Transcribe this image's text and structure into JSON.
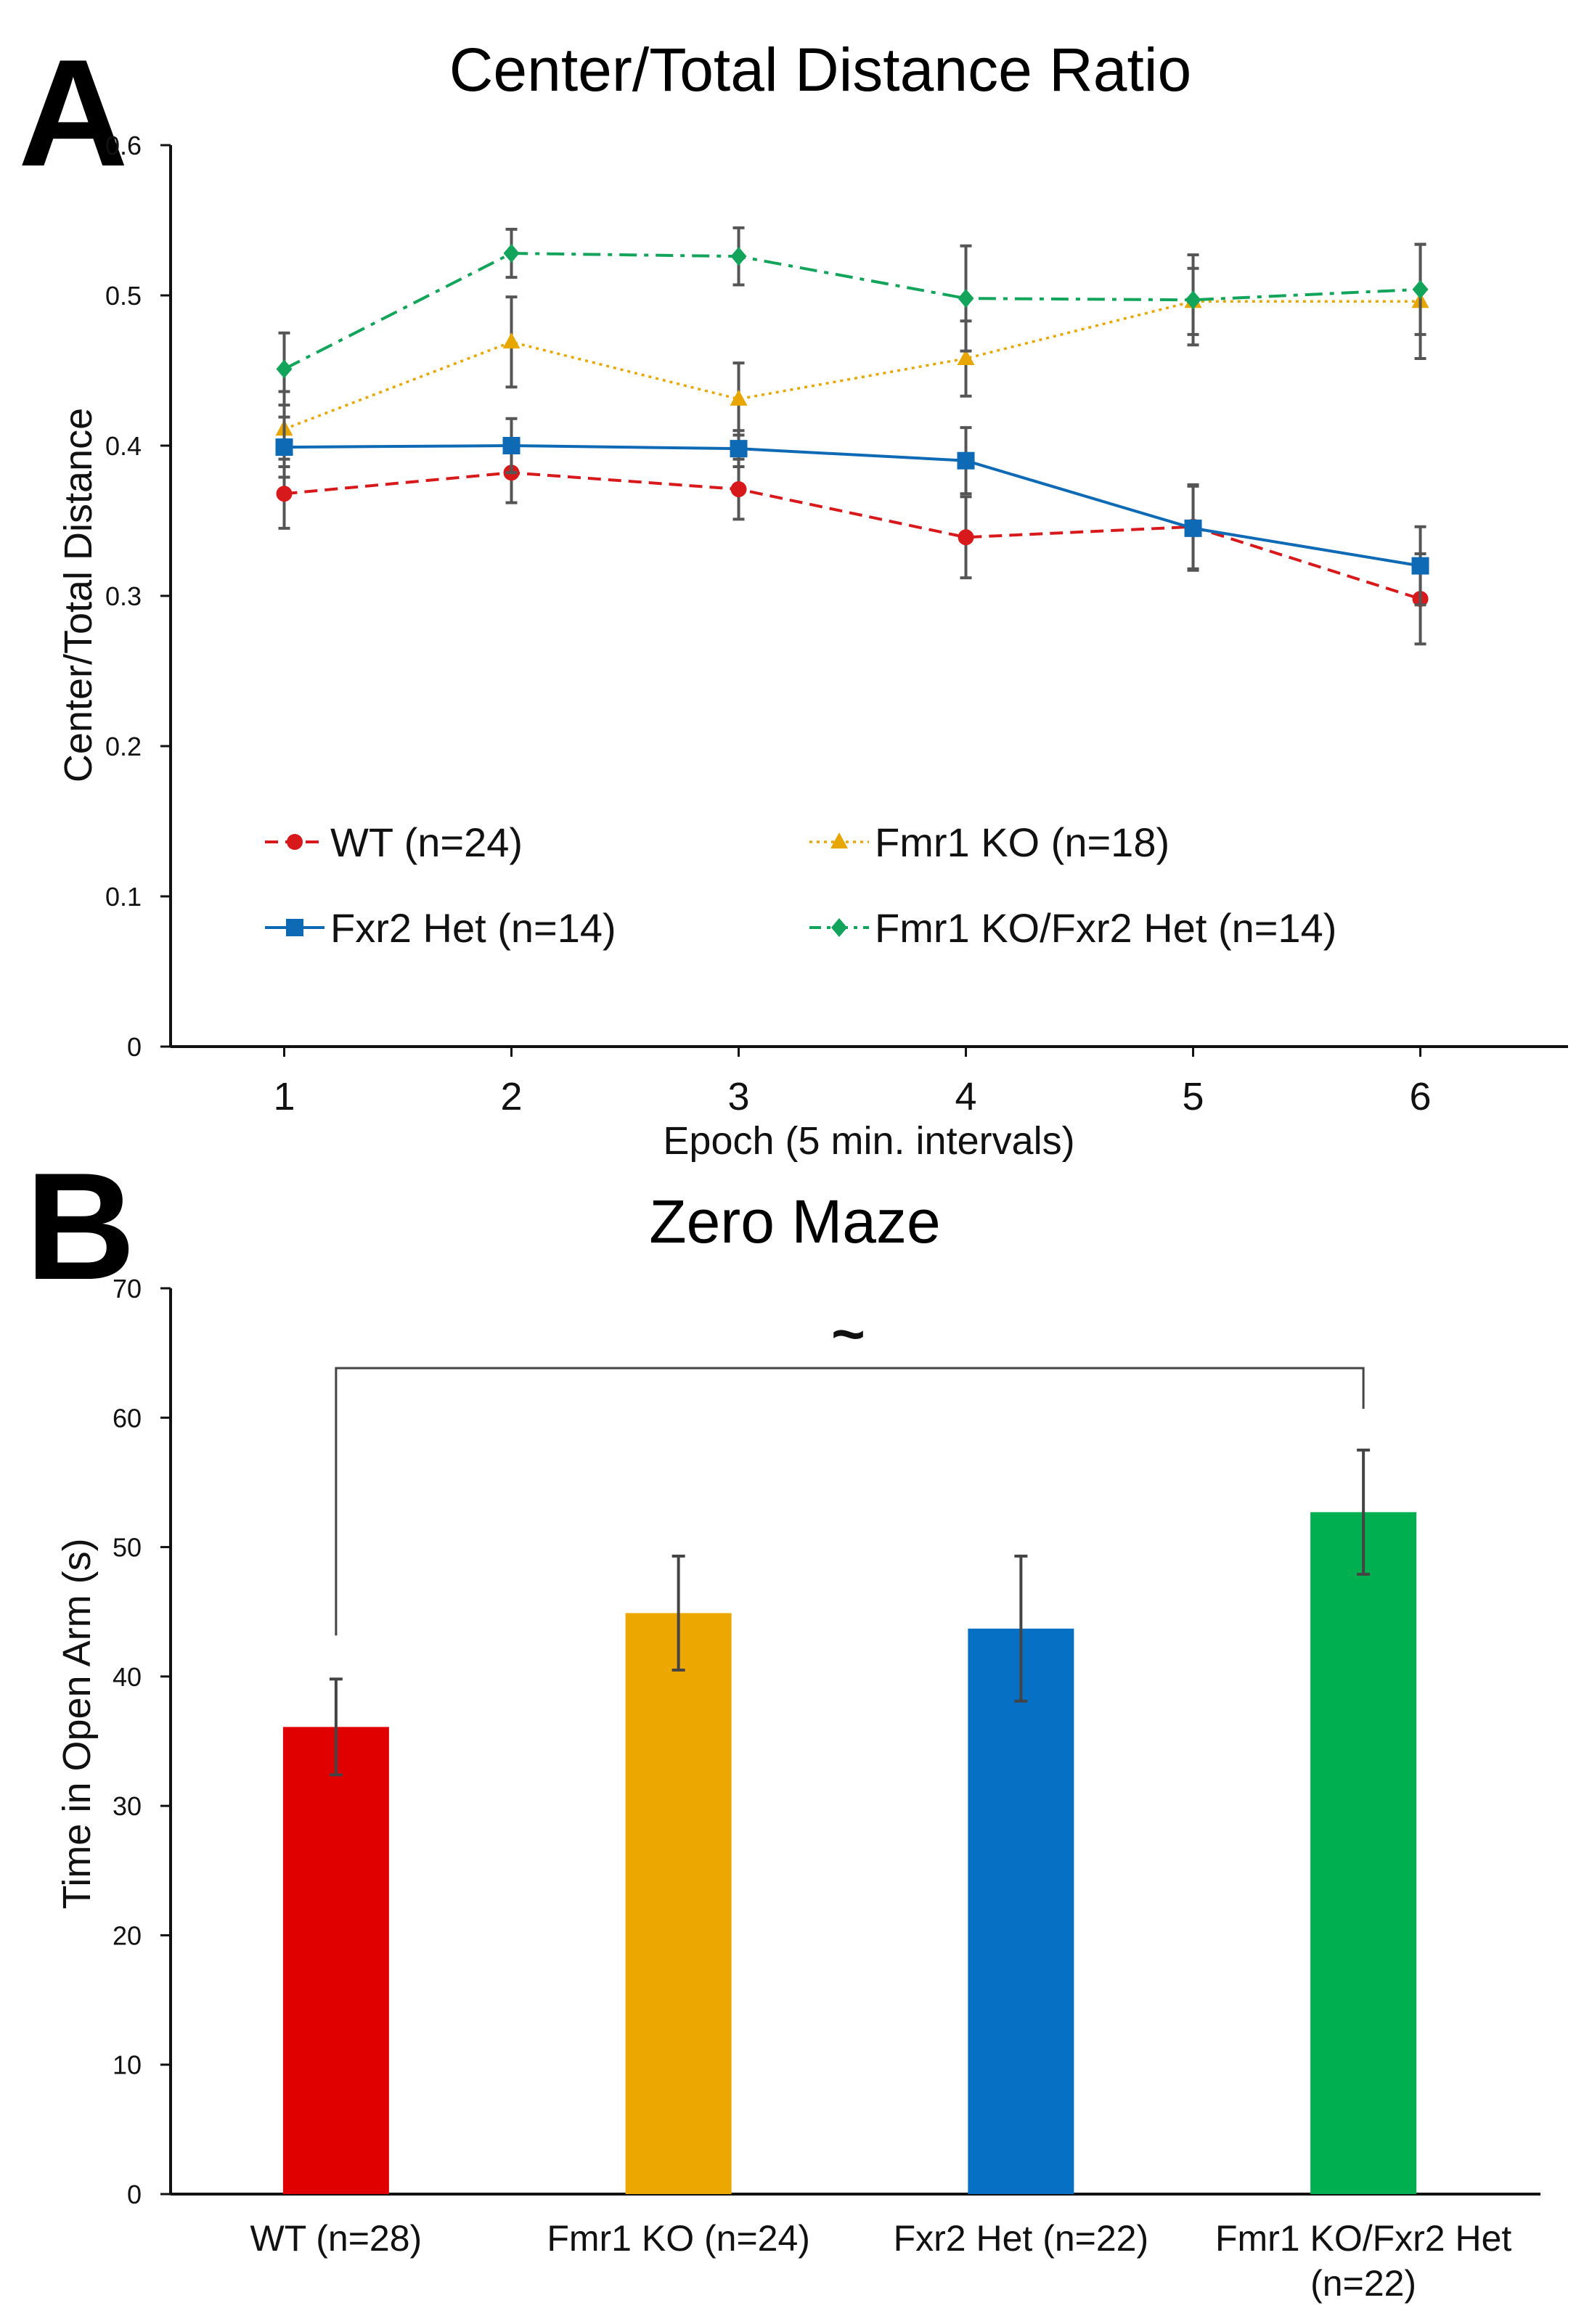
{
  "figure": {
    "panel_a_letter": "A",
    "panel_b_letter": "B"
  },
  "chart_data": [
    {
      "type": "line",
      "title": "Center/Total Distance Ratio",
      "xlabel": "Epoch (5 min. intervals)",
      "ylabel": "Center/Total Distance",
      "x": [
        1,
        2,
        3,
        4,
        5,
        6
      ],
      "ylim": [
        0,
        0.6
      ],
      "yticks": [
        "0",
        "0.1",
        "0.2",
        "0.3",
        "0.4",
        "0.5",
        "0.6"
      ],
      "series": [
        {
          "name": "WT (n=24)",
          "color": "#d7191c",
          "dash": "dashed",
          "marker": "circle",
          "values": [
            0.368,
            0.382,
            0.371,
            0.339,
            0.346,
            0.298
          ],
          "errors": [
            0.023,
            0.02,
            0.02,
            0.027,
            0.028,
            0.03
          ]
        },
        {
          "name": "Fmr1 KO (n=18)",
          "color": "#e8a600",
          "dash": "dotted",
          "marker": "triangle",
          "values": [
            0.411,
            0.469,
            0.431,
            0.458,
            0.496,
            0.496
          ],
          "errors": [
            0.025,
            0.03,
            0.024,
            0.025,
            0.022,
            0.038
          ]
        },
        {
          "name": "Fxr2 Het (n=14)",
          "color": "#0e6ab4",
          "dash": "solid",
          "marker": "square",
          "values": [
            0.399,
            0.4,
            0.398,
            0.39,
            0.345,
            0.32
          ],
          "errors": [
            0.02,
            0.018,
            0.012,
            0.022,
            0.028,
            0.026
          ]
        },
        {
          "name": "Fmr1 KO/Fxr2 Het (n=14)",
          "color": "#13a45b",
          "dash": "dashdot",
          "marker": "diamond",
          "values": [
            0.451,
            0.528,
            0.526,
            0.498,
            0.497,
            0.504
          ],
          "errors": [
            0.024,
            0.016,
            0.019,
            0.035,
            0.03,
            0.03
          ]
        }
      ]
    },
    {
      "type": "bar",
      "title": "Zero Maze",
      "xlabel": "",
      "ylabel": "Time in Open Arm (s)",
      "categories": [
        "WT (n=28)",
        "Fmr1 KO (n=24)",
        "Fxr2 Het (n=22)",
        "Fmr1 KO/Fxr2 Het (n=22)"
      ],
      "category_lines": [
        [
          "WT (n=28)"
        ],
        [
          "Fmr1 KO (n=24)"
        ],
        [
          "Fxr2 Het (n=22)"
        ],
        [
          "Fmr1 KO/Fxr2 Het",
          "(n=22)"
        ]
      ],
      "values": [
        36.1,
        44.9,
        43.7,
        52.7
      ],
      "errors": [
        3.7,
        4.4,
        5.6,
        4.8
      ],
      "colors": [
        "#e00000",
        "#eda800",
        "#0570c4",
        "#00b050"
      ],
      "ylim": [
        0,
        70
      ],
      "yticks": [
        "0",
        "10",
        "20",
        "30",
        "40",
        "50",
        "60",
        "70"
      ],
      "annotation": {
        "text": "~",
        "from_category": 0,
        "to_category": 3
      }
    }
  ]
}
